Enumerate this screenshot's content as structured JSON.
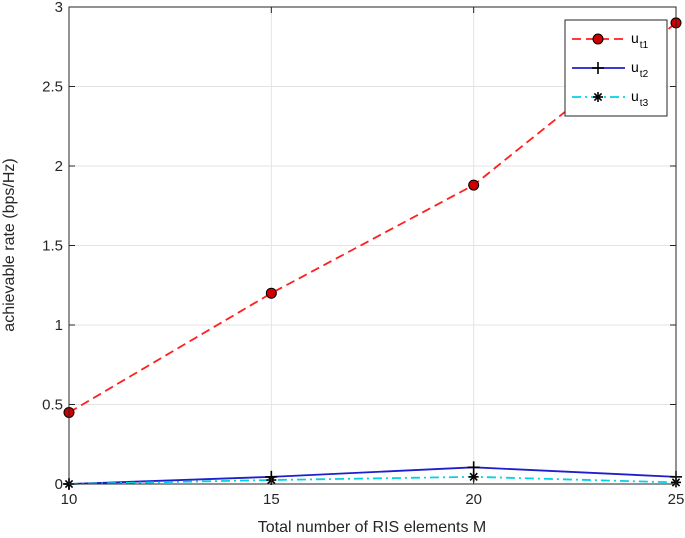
{
  "chart_data": {
    "type": "line",
    "title": "",
    "xlabel": "Total number of RIS elements M",
    "ylabel": "achievable rate (bps/Hz)",
    "xlim": [
      10,
      25
    ],
    "ylim": [
      0,
      3
    ],
    "x_ticks": [
      10,
      15,
      20,
      25
    ],
    "y_ticks": [
      0,
      0.5,
      1,
      1.5,
      2,
      2.5,
      3
    ],
    "x_tick_labels": [
      "10",
      "15",
      "20",
      "25"
    ],
    "y_tick_labels": [
      "0",
      "0.5",
      "1",
      "1.5",
      "2",
      "2.5",
      "3"
    ],
    "grid": true,
    "legend_position": "top-right",
    "x": [
      10,
      15,
      20,
      25
    ],
    "series": [
      {
        "name": "u",
        "name_subscript": "t1",
        "values": [
          0.45,
          1.2,
          1.88,
          2.9
        ],
        "color": "#ff1f1f",
        "line_style": "dashed",
        "marker": "filled-circle",
        "marker_fill": "#cc0000"
      },
      {
        "name": "u",
        "name_subscript": "t2",
        "values": [
          0.0,
          0.045,
          0.105,
          0.045
        ],
        "color": "#1f1fcc",
        "line_style": "solid",
        "marker": "plus"
      },
      {
        "name": "u",
        "name_subscript": "t3",
        "values": [
          0.0,
          0.025,
          0.045,
          0.01
        ],
        "color": "#00d2e6",
        "line_style": "dash-dot",
        "marker": "asterisk"
      }
    ]
  }
}
